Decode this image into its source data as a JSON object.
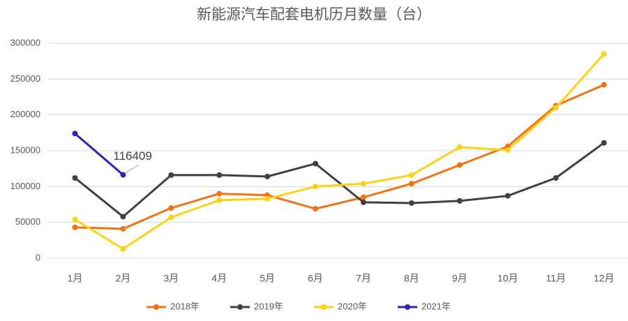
{
  "chart_data": {
    "type": "line",
    "title": "新能源汽车配套电机历月数量（台）",
    "categories": [
      "1月",
      "2月",
      "3月",
      "4月",
      "5月",
      "6月",
      "7月",
      "8月",
      "9月",
      "10月",
      "11月",
      "12月"
    ],
    "series": [
      {
        "name": "2018年",
        "color": "#f47216",
        "values": [
          43000,
          41000,
          70000,
          90000,
          88000,
          69000,
          85000,
          104000,
          130000,
          156000,
          213000,
          242000
        ]
      },
      {
        "name": "2019年",
        "color": "#404040",
        "values": [
          112000,
          58000,
          116000,
          116000,
          114000,
          132000,
          78000,
          77000,
          80000,
          87000,
          112000,
          161000
        ]
      },
      {
        "name": "2020年",
        "color": "#fcd116",
        "values": [
          54000,
          13000,
          57000,
          81000,
          83000,
          100000,
          104000,
          116000,
          155000,
          151000,
          210000,
          285000
        ]
      },
      {
        "name": "2021年",
        "color": "#3a1fa8",
        "values": [
          174000,
          116409,
          null,
          null,
          null,
          null,
          null,
          null,
          null,
          null,
          null,
          null
        ]
      }
    ],
    "ylim": [
      0,
      300000
    ],
    "yticks": [
      0,
      50000,
      100000,
      150000,
      200000,
      250000,
      300000
    ],
    "grid": true,
    "legend": "bottom"
  }
}
